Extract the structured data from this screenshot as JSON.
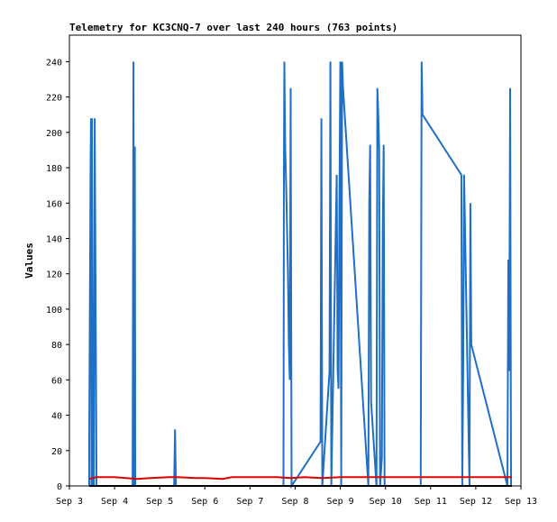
{
  "chart_data": {
    "type": "line",
    "title": "Telemetry for KC3CNQ-7 over last 240 hours (763 points)",
    "xlabel": "",
    "ylabel": "Values",
    "x_tick_labels": [
      "Sep 3",
      "Sep 4",
      "Sep 5",
      "Sep 6",
      "Sep 7",
      "Sep 8",
      "Sep 9",
      "Sep 10",
      "Sep 11",
      "Sep 12",
      "Sep 13"
    ],
    "xlim": [
      0,
      10
    ],
    "y_tick_labels": [
      "0",
      "20",
      "40",
      "60",
      "80",
      "100",
      "120",
      "140",
      "160",
      "180",
      "200",
      "220",
      "240"
    ],
    "ylim": [
      0,
      255
    ],
    "grid": false,
    "series": [
      {
        "color": "#1f6fc5",
        "x": [
          0.44,
          0.44,
          0.45,
          0.46,
          0.47,
          0.48,
          0.49,
          0.5,
          0.52,
          0.54,
          0.56,
          0.6,
          1.4,
          1.42,
          1.43,
          1.45,
          1.46,
          2.32,
          2.34,
          2.36,
          4.74,
          4.75,
          4.76,
          4.77,
          4.78,
          4.8,
          4.82,
          4.84,
          4.86,
          4.88,
          4.9,
          4.92,
          5.56,
          5.58,
          5.6,
          5.76,
          5.78,
          5.8,
          5.92,
          5.94,
          5.96,
          5.98,
          6.0,
          6.02,
          6.04,
          6.06,
          6.62,
          6.64,
          6.66,
          6.68,
          6.8,
          6.82,
          6.84,
          6.86,
          6.88,
          6.92,
          6.94,
          6.96,
          6.98,
          7.78,
          7.8,
          7.82,
          8.68,
          8.7,
          8.72,
          8.74,
          8.86,
          8.88,
          8.9,
          9.7,
          9.72,
          9.74,
          9.76,
          9.78,
          9.8
        ],
        "y": [
          0,
          25,
          78,
          130,
          182,
          208,
          0,
          208,
          0,
          0,
          208,
          0,
          0,
          240,
          0,
          192,
          0,
          0,
          32,
          0,
          0,
          176,
          240,
          213,
          190,
          170,
          145,
          120,
          80,
          60,
          225,
          0,
          25,
          208,
          0,
          65,
          240,
          0,
          176,
          65,
          55,
          160,
          240,
          0,
          240,
          225,
          0,
          160,
          193,
          48,
          0,
          225,
          210,
          190,
          0,
          16,
          145,
          193,
          0,
          0,
          240,
          210,
          176,
          0,
          65,
          176,
          0,
          160,
          80,
          0,
          128,
          65,
          225,
          0,
          0
        ]
      },
      {
        "color": "#dd0000",
        "x": [
          0.44,
          0.6,
          1.0,
          1.5,
          1.8,
          2.2,
          2.4,
          2.8,
          3.0,
          3.4,
          3.6,
          4.0,
          4.6,
          4.9,
          5.2,
          5.6,
          6.0,
          6.6,
          7.0,
          7.8,
          8.6,
          9.0,
          9.8
        ],
        "y": [
          4,
          5,
          5,
          4,
          4.5,
          5,
          5,
          4.5,
          4.5,
          4,
          5,
          5,
          5,
          4.5,
          5,
          4.5,
          5,
          5,
          5,
          5,
          5,
          5,
          5
        ]
      },
      {
        "color": "#000000",
        "x": [
          0.44,
          9.8
        ],
        "y": [
          0,
          0
        ]
      }
    ]
  }
}
